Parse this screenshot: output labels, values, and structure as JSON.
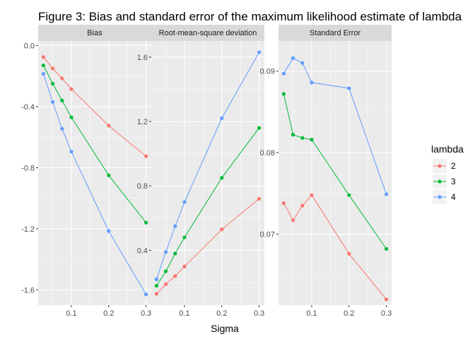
{
  "figure": {
    "title": "Figure 3: Bias and standard error of the maximum likelihood estimate of lambda",
    "xlabel": "Sigma",
    "legend_title": "lambda",
    "legend_position": "right"
  },
  "chart_data": [
    {
      "type": "line",
      "title": "Bias",
      "xlabel": "Sigma",
      "x": [
        0.025,
        0.05,
        0.075,
        0.1,
        0.2,
        0.3
      ],
      "xticks": [
        0.1,
        0.2,
        0.3
      ],
      "xlim": [
        0.011,
        0.314
      ],
      "ylim": [
        -1.7,
        0.03
      ],
      "yticks": [
        0.0,
        -0.4,
        -0.8,
        -1.2,
        -1.6
      ],
      "ytick_labels": [
        "0.0",
        "-0.4",
        "-0.8",
        "-1.2",
        "-1.6"
      ],
      "grid": true,
      "series": [
        {
          "name": "2",
          "color": "#F8766D",
          "values": [
            -0.075,
            -0.15,
            -0.215,
            -0.285,
            -0.525,
            -0.725
          ]
        },
        {
          "name": "3",
          "color": "#00BA38",
          "values": [
            -0.13,
            -0.25,
            -0.36,
            -0.47,
            -0.85,
            -1.16
          ]
        },
        {
          "name": "4",
          "color": "#619CFF",
          "values": [
            -0.185,
            -0.37,
            -0.545,
            -0.695,
            -1.215,
            -1.63
          ]
        }
      ]
    },
    {
      "type": "line",
      "title": "Root-mean-square deviation",
      "xlabel": "Sigma",
      "x": [
        0.025,
        0.05,
        0.075,
        0.1,
        0.2,
        0.3
      ],
      "xticks": [
        0.1,
        0.2,
        0.3
      ],
      "xlim": [
        0.011,
        0.314
      ],
      "ylim": [
        0.06,
        1.7
      ],
      "yticks": [
        0.4,
        0.8,
        1.2,
        1.6
      ],
      "ytick_labels": [
        "0.4",
        "0.8",
        "1.2",
        "1.6"
      ],
      "grid": true,
      "series": [
        {
          "name": "2",
          "color": "#F8766D",
          "values": [
            0.13,
            0.19,
            0.24,
            0.3,
            0.53,
            0.72
          ]
        },
        {
          "name": "3",
          "color": "#00BA38",
          "values": [
            0.18,
            0.27,
            0.38,
            0.48,
            0.85,
            1.16
          ]
        },
        {
          "name": "4",
          "color": "#619CFF",
          "values": [
            0.22,
            0.39,
            0.55,
            0.7,
            1.22,
            1.63
          ]
        }
      ]
    },
    {
      "type": "line",
      "title": "Standard Error",
      "xlabel": "Sigma",
      "x": [
        0.025,
        0.05,
        0.075,
        0.1,
        0.2,
        0.3
      ],
      "xticks": [
        0.1,
        0.2,
        0.3
      ],
      "xlim": [
        0.011,
        0.314
      ],
      "ylim": [
        0.0613,
        0.0937
      ],
      "yticks": [
        0.07,
        0.08,
        0.09
      ],
      "ytick_labels": [
        "0.07",
        "0.08",
        "0.09"
      ],
      "grid": true,
      "series": [
        {
          "name": "2",
          "color": "#F8766D",
          "values": [
            0.0738,
            0.0717,
            0.0735,
            0.0748,
            0.0676,
            0.062
          ]
        },
        {
          "name": "3",
          "color": "#00BA38",
          "values": [
            0.0872,
            0.0822,
            0.0818,
            0.0816,
            0.0748,
            0.0682
          ]
        },
        {
          "name": "4",
          "color": "#619CFF",
          "values": [
            0.0897,
            0.0916,
            0.091,
            0.0886,
            0.0879,
            0.0749
          ]
        }
      ]
    }
  ]
}
